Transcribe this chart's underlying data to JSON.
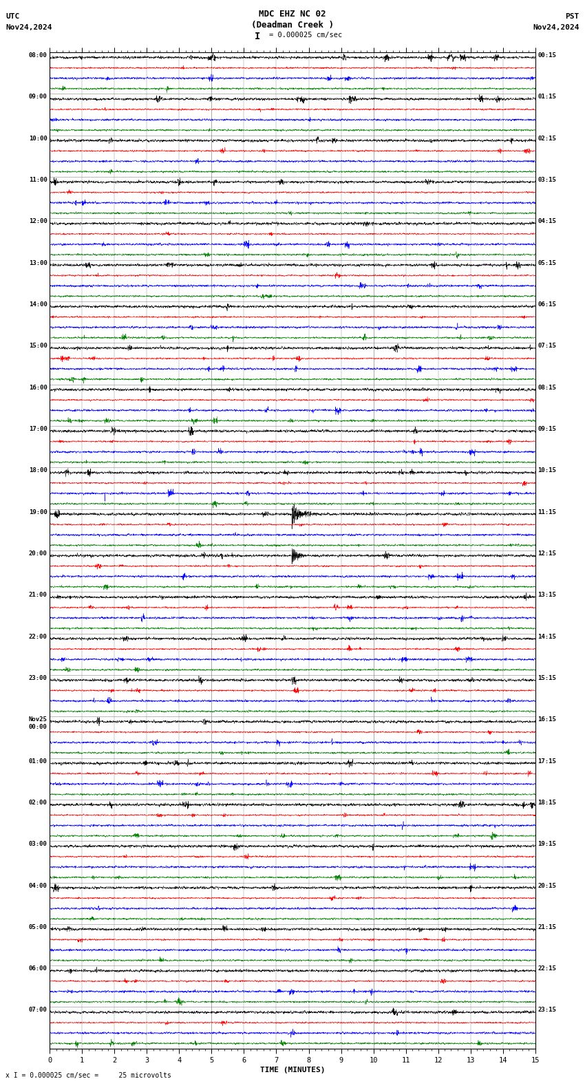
{
  "title_line1": "MDC EHZ NC 02",
  "title_line2": "(Deadman Creek )",
  "scale_label": "= 0.000025 cm/sec",
  "utc_label": "UTC",
  "pst_label": "PST",
  "date_left": "Nov24,2024",
  "date_right": "Nov24,2024",
  "xlabel": "TIME (MINUTES)",
  "footer": "x I = 0.000025 cm/sec =     25 microvolts",
  "utc_times": [
    "08:00",
    "09:00",
    "10:00",
    "11:00",
    "12:00",
    "13:00",
    "14:00",
    "15:00",
    "16:00",
    "17:00",
    "18:00",
    "19:00",
    "20:00",
    "21:00",
    "22:00",
    "23:00",
    "Nov25\n00:00",
    "01:00",
    "02:00",
    "03:00",
    "04:00",
    "05:00",
    "06:00",
    "07:00"
  ],
  "pst_times": [
    "00:15",
    "01:15",
    "02:15",
    "03:15",
    "04:15",
    "05:15",
    "06:15",
    "07:15",
    "08:15",
    "09:15",
    "10:15",
    "11:15",
    "12:15",
    "13:15",
    "14:15",
    "15:15",
    "16:15",
    "17:15",
    "18:15",
    "19:15",
    "20:15",
    "21:15",
    "22:15",
    "23:15"
  ],
  "num_rows": 24,
  "minutes_per_row": 15,
  "colors": [
    "black",
    "red",
    "blue",
    "green"
  ],
  "bg_color": "white",
  "grid_color": "#888888",
  "seismic_event_row": 11,
  "seismic_event_minute": 7.5,
  "seismic_amplitude": 2.5,
  "seismic_event_row2": 12,
  "seismic_event_minute2": 7.5,
  "noise_base": 0.055,
  "channel_noise_scale": [
    1.0,
    0.6,
    0.8,
    0.7
  ]
}
